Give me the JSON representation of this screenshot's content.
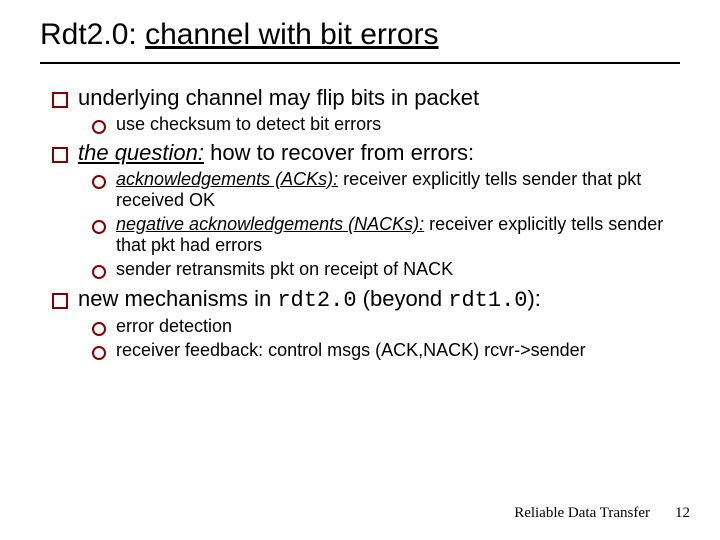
{
  "colors": {
    "bullet_border": "#820000",
    "text": "#000000",
    "background": "#ffffff",
    "rule": "#000000"
  },
  "title": {
    "plain": "Rdt2.0: ",
    "underlined": "channel with bit errors",
    "fontsize": 30
  },
  "body_font": "Comic Sans MS",
  "lvl1_fontsize": 22,
  "lvl2_fontsize": 18,
  "bullets": {
    "b1": "underlying channel may flip bits in packet",
    "b1a": "use checksum to detect bit errors",
    "b2_pre": "",
    "b2_iu": "the question:",
    "b2_post": " how to recover from errors:",
    "b2a_iu": "acknowledgements (ACKs):",
    "b2a_post": " receiver explicitly tells sender that pkt received OK",
    "b2b_iu": "negative acknowledgements (NACKs):",
    "b2b_post": " receiver explicitly tells sender that pkt had errors",
    "b2c": "sender retransmits pkt on receipt of NACK",
    "b3_pre": "new mechanisms in ",
    "b3_code1": "rdt2.0",
    "b3_mid": " (beyond ",
    "b3_code2": "rdt1.0",
    "b3_post": "):",
    "b3a": "error detection",
    "b3b": "receiver feedback: control msgs (ACK,NACK) rcvr->sender"
  },
  "footer": {
    "label": "Reliable Data Transfer",
    "page": "12",
    "font": "Times New Roman",
    "fontsize": 15
  }
}
